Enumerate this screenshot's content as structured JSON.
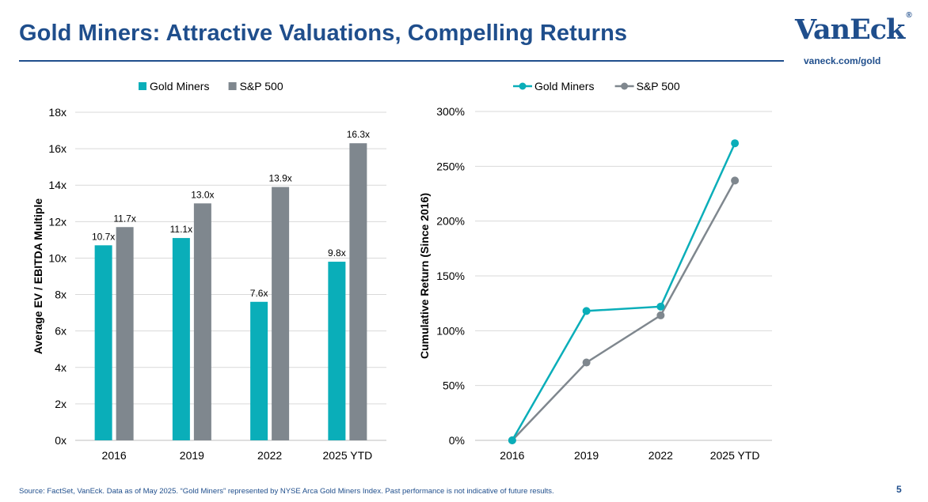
{
  "header": {
    "title": "Gold Miners: Attractive Valuations, Compelling Returns",
    "logo_text": "VanEck",
    "logo_mark": "®",
    "website": "vaneck.com/gold"
  },
  "footer": {
    "source": "Source: FactSet, VanEck. Data as of May 2025. “Gold Miners” represented by NYSE Arca Gold Miners Index. Past performance is not indicative of future results.",
    "page_number": "5"
  },
  "colors": {
    "brand": "#1f4e8c",
    "gold_miners": "#0aaeb9",
    "sp500": "#7f878e",
    "grid": "#d9d9d9"
  },
  "chart_data": [
    {
      "type": "bar",
      "categories": [
        "2016",
        "2019",
        "2022",
        "2025 YTD"
      ],
      "series": [
        {
          "name": "Gold Miners",
          "values": [
            10.7,
            11.1,
            7.6,
            9.8
          ],
          "labels": [
            "10.7x",
            "11.1x",
            "7.6x",
            "9.8x"
          ]
        },
        {
          "name": "S&P 500",
          "values": [
            11.7,
            13.0,
            13.9,
            16.3
          ],
          "labels": [
            "11.7x",
            "13.0x",
            "13.9x",
            "16.3x"
          ]
        }
      ],
      "ylabel": "Average EV / EBITDA Multiple",
      "ylim": [
        0,
        18
      ],
      "yticks": [
        "0x",
        "2x",
        "4x",
        "6x",
        "8x",
        "10x",
        "12x",
        "14x",
        "16x",
        "18x"
      ],
      "grid": true,
      "legend": "top-center"
    },
    {
      "type": "line",
      "categories": [
        "2016",
        "2019",
        "2022",
        "2025 YTD"
      ],
      "series": [
        {
          "name": "Gold Miners",
          "values": [
            0,
            118,
            122,
            271
          ]
        },
        {
          "name": "S&P 500",
          "values": [
            0,
            71,
            114,
            237
          ]
        }
      ],
      "ylabel": "Cumulative Return (Since 2016)",
      "ylim": [
        0,
        300
      ],
      "yticks": [
        "0%",
        "50%",
        "100%",
        "150%",
        "200%",
        "250%",
        "300%"
      ],
      "grid": true,
      "legend": "top-center"
    }
  ]
}
